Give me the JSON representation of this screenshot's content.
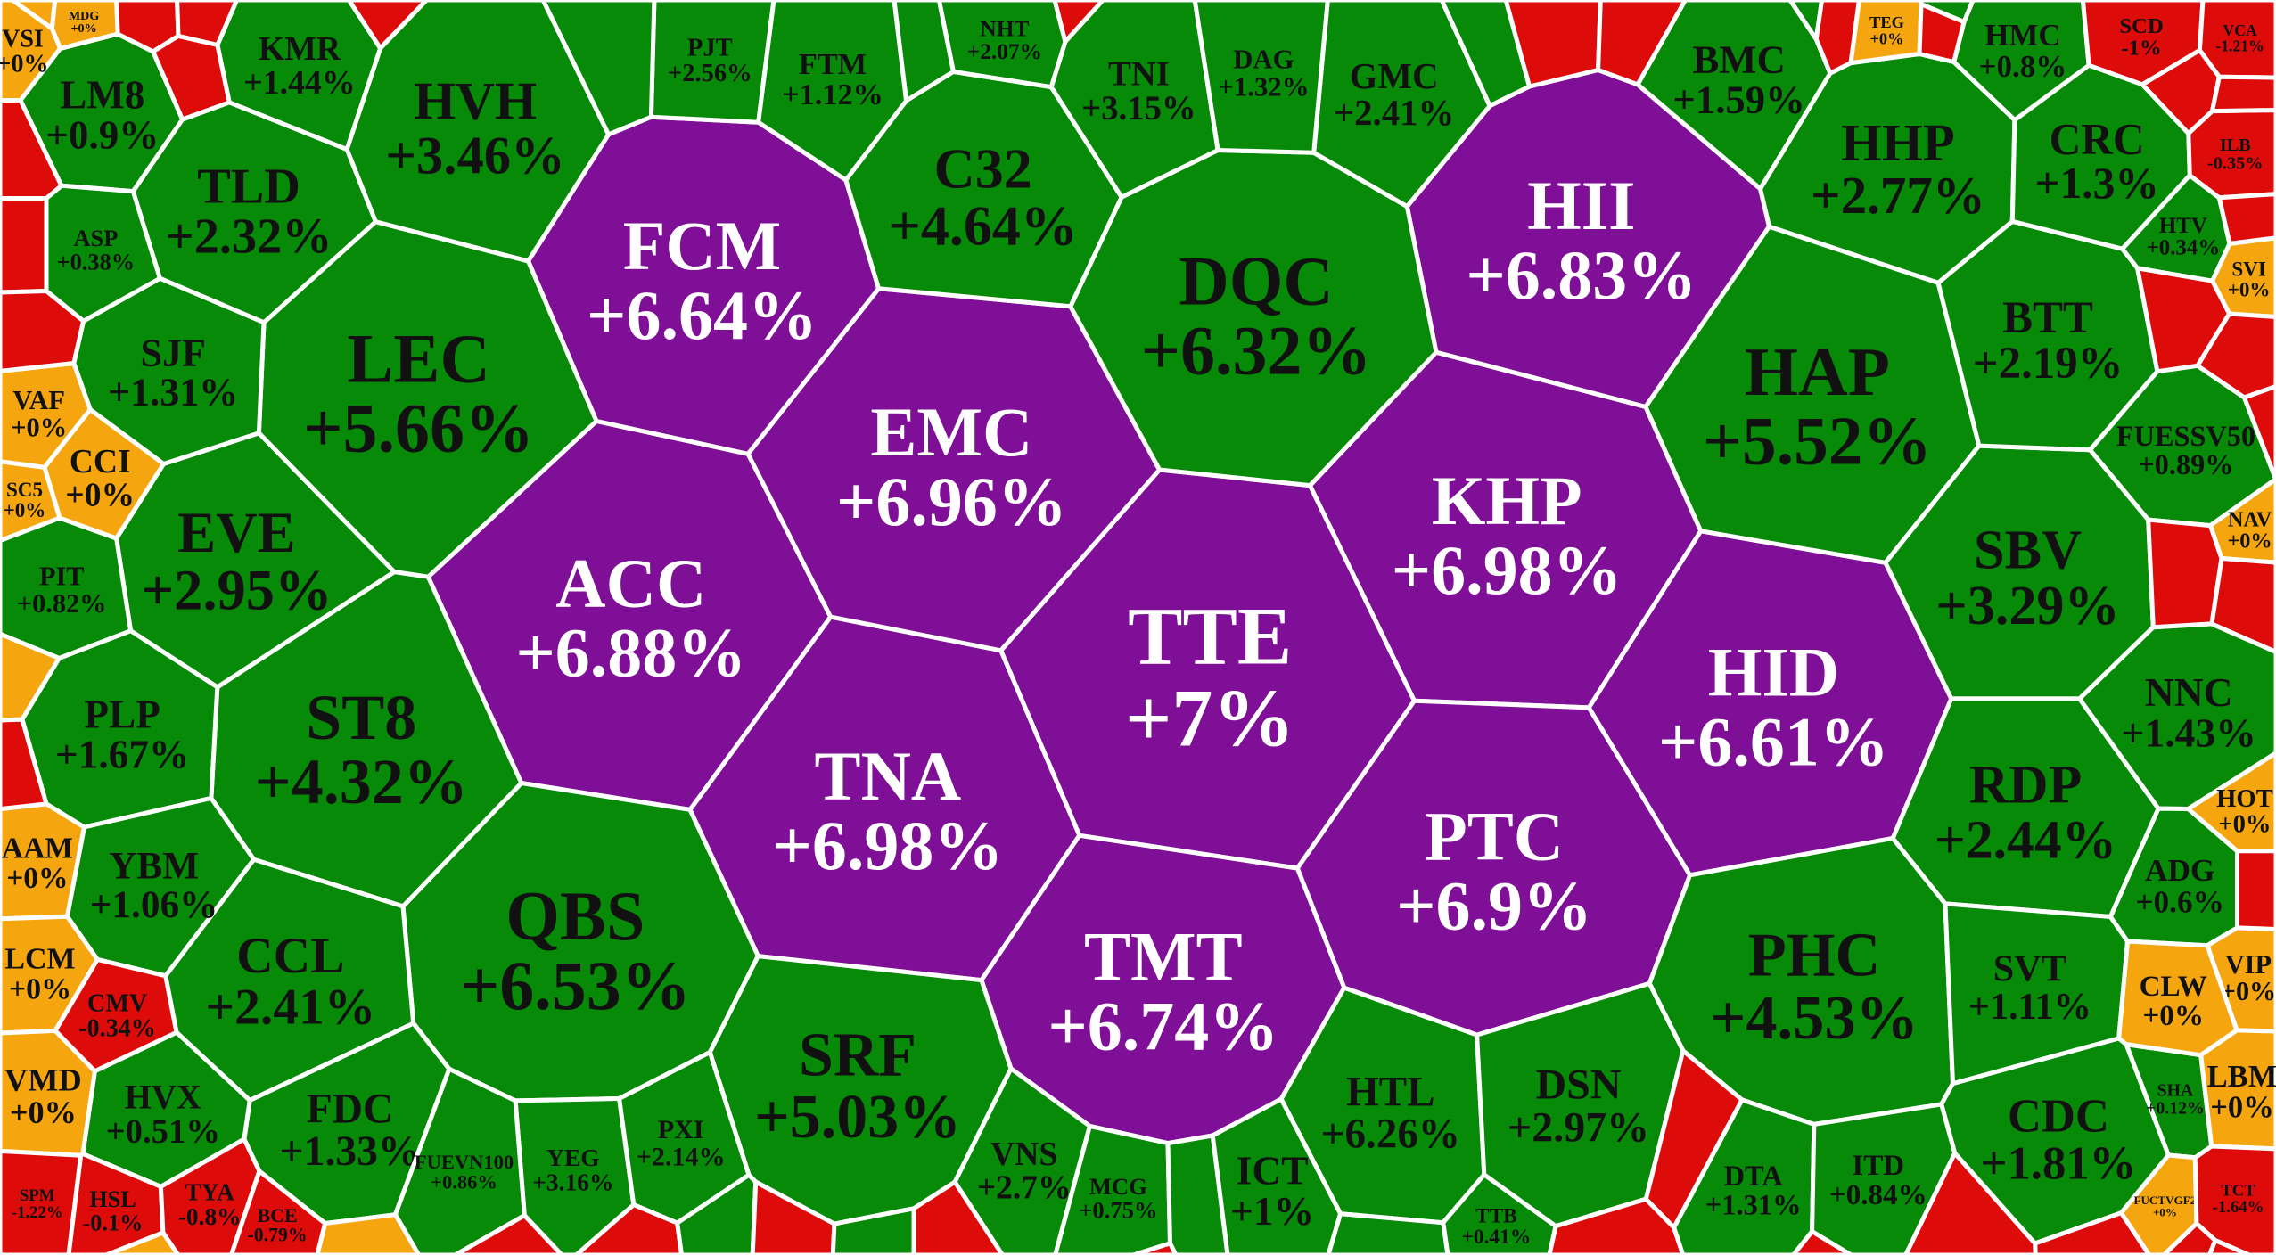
{
  "chart_data": {
    "type": "heatmap",
    "title": "",
    "colors": {
      "ceiling": "#7E0F96",
      "up": "#078A07",
      "flat": "#F5A60F",
      "down": "#DE0B0B",
      "label_dark": "#111111",
      "label_light": "#ffffff",
      "border": "#ffffff",
      "background": "#ffffff"
    },
    "cells": [
      {
        "ticker": "TTE",
        "change": "+7%",
        "value": 7,
        "status": "ceiling"
      },
      {
        "ticker": "KHP",
        "change": "+6.98%",
        "value": 6.98,
        "status": "ceiling"
      },
      {
        "ticker": "TNA",
        "change": "+6.98%",
        "value": 6.98,
        "status": "ceiling"
      },
      {
        "ticker": "EMC",
        "change": "+6.96%",
        "value": 6.96,
        "status": "ceiling"
      },
      {
        "ticker": "PTC",
        "change": "+6.9%",
        "value": 6.9,
        "status": "ceiling"
      },
      {
        "ticker": "ACC",
        "change": "+6.88%",
        "value": 6.88,
        "status": "ceiling"
      },
      {
        "ticker": "HII",
        "change": "+6.83%",
        "value": 6.83,
        "status": "ceiling"
      },
      {
        "ticker": "TMT",
        "change": "+6.74%",
        "value": 6.74,
        "status": "ceiling"
      },
      {
        "ticker": "FCM",
        "change": "+6.64%",
        "value": 6.64,
        "status": "ceiling"
      },
      {
        "ticker": "HID",
        "change": "+6.61%",
        "value": 6.61,
        "status": "ceiling"
      },
      {
        "ticker": "QBS",
        "change": "+6.53%",
        "value": 6.53,
        "status": "up"
      },
      {
        "ticker": "DQC",
        "change": "+6.32%",
        "value": 6.32,
        "status": "up"
      },
      {
        "ticker": "HTL",
        "change": "+6.26%",
        "value": 6.26,
        "status": "up"
      },
      {
        "ticker": "LEC",
        "change": "+5.66%",
        "value": 5.66,
        "status": "up"
      },
      {
        "ticker": "HAP",
        "change": "+5.52%",
        "value": 5.52,
        "status": "up"
      },
      {
        "ticker": "SRF",
        "change": "+5.03%",
        "value": 5.03,
        "status": "up"
      },
      {
        "ticker": "C32",
        "change": "+4.64%",
        "value": 4.64,
        "status": "up"
      },
      {
        "ticker": "PHC",
        "change": "+4.53%",
        "value": 4.53,
        "status": "up"
      },
      {
        "ticker": "ST8",
        "change": "+4.32%",
        "value": 4.32,
        "status": "up"
      },
      {
        "ticker": "HVH",
        "change": "+3.46%",
        "value": 3.46,
        "status": "up"
      },
      {
        "ticker": "SBV",
        "change": "+3.29%",
        "value": 3.29,
        "status": "up"
      },
      {
        "ticker": "YEG",
        "change": "+3.16%",
        "value": 3.16,
        "status": "up"
      },
      {
        "ticker": "TNI",
        "change": "+3.15%",
        "value": 3.15,
        "status": "up"
      },
      {
        "ticker": "DSN",
        "change": "+2.97%",
        "value": 2.97,
        "status": "up"
      },
      {
        "ticker": "EVE",
        "change": "+2.95%",
        "value": 2.95,
        "status": "up"
      },
      {
        "ticker": "HHP",
        "change": "+2.77%",
        "value": 2.77,
        "status": "up"
      },
      {
        "ticker": "VNS",
        "change": "+2.7%",
        "value": 2.7,
        "status": "up"
      },
      {
        "ticker": "PJT",
        "change": "+2.56%",
        "value": 2.56,
        "status": "up"
      },
      {
        "ticker": "RDP",
        "change": "+2.44%",
        "value": 2.44,
        "status": "up"
      },
      {
        "ticker": "GMC",
        "change": "+2.41%",
        "value": 2.41,
        "status": "up"
      },
      {
        "ticker": "CCL",
        "change": "+2.41%",
        "value": 2.41,
        "status": "up"
      },
      {
        "ticker": "TLD",
        "change": "+2.32%",
        "value": 2.32,
        "status": "up"
      },
      {
        "ticker": "BTT",
        "change": "+2.19%",
        "value": 2.19,
        "status": "up"
      },
      {
        "ticker": "PXI",
        "change": "+2.14%",
        "value": 2.14,
        "status": "up"
      },
      {
        "ticker": "NHT",
        "change": "+2.07%",
        "value": 2.07,
        "status": "up"
      },
      {
        "ticker": "CDC",
        "change": "+1.81%",
        "value": 1.81,
        "status": "up"
      },
      {
        "ticker": "PLP",
        "change": "+1.67%",
        "value": 1.67,
        "status": "up"
      },
      {
        "ticker": "BMC",
        "change": "+1.59%",
        "value": 1.59,
        "status": "up"
      },
      {
        "ticker": "KMR",
        "change": "+1.44%",
        "value": 1.44,
        "status": "up"
      },
      {
        "ticker": "NNC",
        "change": "+1.43%",
        "value": 1.43,
        "status": "up"
      },
      {
        "ticker": "FDC",
        "change": "+1.33%",
        "value": 1.33,
        "status": "up"
      },
      {
        "ticker": "DAG",
        "change": "+1.32%",
        "value": 1.32,
        "status": "up"
      },
      {
        "ticker": "SJF",
        "change": "+1.31%",
        "value": 1.31,
        "status": "up"
      },
      {
        "ticker": "DTA",
        "change": "+1.31%",
        "value": 1.31,
        "status": "up"
      },
      {
        "ticker": "CRC",
        "change": "+1.3%",
        "value": 1.3,
        "status": "up"
      },
      {
        "ticker": "FTM",
        "change": "+1.12%",
        "value": 1.12,
        "status": "up"
      },
      {
        "ticker": "SVT",
        "change": "+1.11%",
        "value": 1.11,
        "status": "up"
      },
      {
        "ticker": "YBM",
        "change": "+1.06%",
        "value": 1.06,
        "status": "up"
      },
      {
        "ticker": "ICT",
        "change": "+1%",
        "value": 1,
        "status": "up"
      },
      {
        "ticker": "LM8",
        "change": "+0.9%",
        "value": 0.9,
        "status": "up"
      },
      {
        "ticker": "FUESSV50",
        "change": "+0.89%",
        "value": 0.89,
        "status": "up"
      },
      {
        "ticker": "FUEVN100",
        "change": "+0.86%",
        "value": 0.86,
        "status": "up"
      },
      {
        "ticker": "ITD",
        "change": "+0.84%",
        "value": 0.84,
        "status": "up"
      },
      {
        "ticker": "PIT",
        "change": "+0.82%",
        "value": 0.82,
        "status": "up"
      },
      {
        "ticker": "HMC",
        "change": "+0.8%",
        "value": 0.8,
        "status": "up"
      },
      {
        "ticker": "MCG",
        "change": "+0.75%",
        "value": 0.75,
        "status": "up"
      },
      {
        "ticker": "ADG",
        "change": "+0.6%",
        "value": 0.6,
        "status": "up"
      },
      {
        "ticker": "HVX",
        "change": "+0.51%",
        "value": 0.51,
        "status": "up"
      },
      {
        "ticker": "TTB",
        "change": "+0.41%",
        "value": 0.41,
        "status": "up"
      },
      {
        "ticker": "ASP",
        "change": "+0.38%",
        "value": 0.38,
        "status": "up"
      },
      {
        "ticker": "HTV",
        "change": "+0.34%",
        "value": 0.34,
        "status": "up"
      },
      {
        "ticker": "SHA",
        "change": "+0.12%",
        "value": 0.12,
        "status": "up"
      },
      {
        "ticker": "VSI",
        "change": "+0%",
        "value": 0,
        "status": "flat"
      },
      {
        "ticker": "MDG",
        "change": "+0%",
        "value": 0,
        "status": "flat"
      },
      {
        "ticker": "VAF",
        "change": "+0%",
        "value": 0,
        "status": "flat"
      },
      {
        "ticker": "CCI",
        "change": "+0%",
        "value": 0,
        "status": "flat"
      },
      {
        "ticker": "SC5",
        "change": "+0%",
        "value": 0,
        "status": "flat"
      },
      {
        "ticker": "AAM",
        "change": "+0%",
        "value": 0,
        "status": "flat"
      },
      {
        "ticker": "LCM",
        "change": "+0%",
        "value": 0,
        "status": "flat"
      },
      {
        "ticker": "VMD",
        "change": "+0%",
        "value": 0,
        "status": "flat"
      },
      {
        "ticker": "TEG",
        "change": "+0%",
        "value": 0,
        "status": "flat"
      },
      {
        "ticker": "SVI",
        "change": "+0%",
        "value": 0,
        "status": "flat"
      },
      {
        "ticker": "NAV",
        "change": "+0%",
        "value": 0,
        "status": "flat"
      },
      {
        "ticker": "HOT",
        "change": "+0%",
        "value": 0,
        "status": "flat"
      },
      {
        "ticker": "VIP",
        "change": "+0%",
        "value": 0,
        "status": "flat"
      },
      {
        "ticker": "CLW",
        "change": "+0%",
        "value": 0,
        "status": "flat"
      },
      {
        "ticker": "LBM",
        "change": "+0%",
        "value": 0,
        "status": "flat"
      },
      {
        "ticker": "FUCTVGF2",
        "change": "+0%",
        "value": 0,
        "status": "flat"
      },
      {
        "ticker": "SCD",
        "change": "-1%",
        "value": -1,
        "status": "down"
      },
      {
        "ticker": "VCA",
        "change": "-1.21%",
        "value": -1.21,
        "status": "down"
      },
      {
        "ticker": "ILB",
        "change": "-0.35%",
        "value": -0.35,
        "status": "down"
      },
      {
        "ticker": "CMV",
        "change": "-0.34%",
        "value": -0.34,
        "status": "down"
      },
      {
        "ticker": "SPM",
        "change": "-1.22%",
        "value": -1.22,
        "status": "down"
      },
      {
        "ticker": "HSL",
        "change": "-0.1%",
        "value": -0.1,
        "status": "down"
      },
      {
        "ticker": "TYA",
        "change": "-0.8%",
        "value": -0.8,
        "status": "down"
      },
      {
        "ticker": "BCE",
        "change": "-0.79%",
        "value": -0.79,
        "status": "down"
      },
      {
        "ticker": "TCT",
        "change": "-1.64%",
        "value": -1.64,
        "status": "down"
      }
    ]
  }
}
